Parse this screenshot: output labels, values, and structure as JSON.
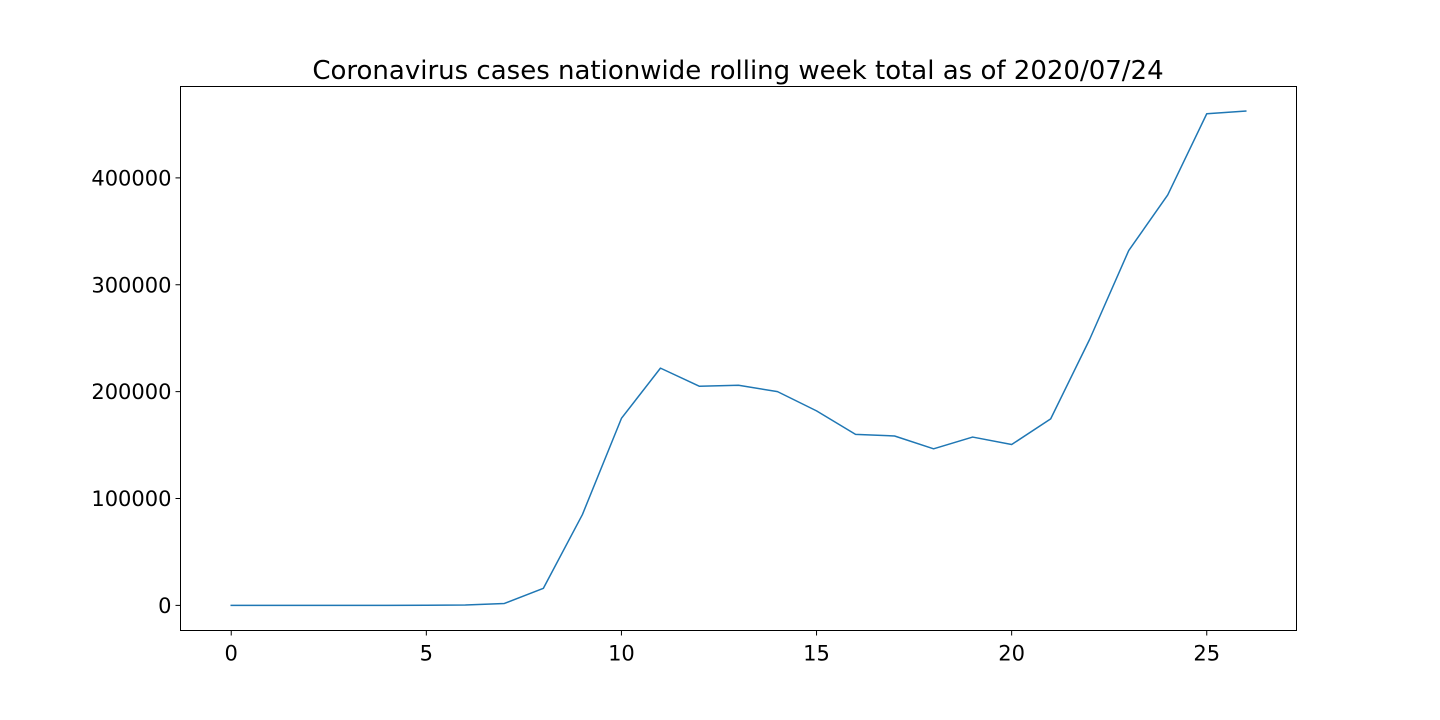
{
  "chart_data": {
    "type": "line",
    "title": "Coronavirus cases nationwide rolling week total as of 2020/07/24",
    "xlabel": "",
    "ylabel": "",
    "x": [
      0,
      1,
      2,
      3,
      4,
      5,
      6,
      7,
      8,
      9,
      10,
      11,
      12,
      13,
      14,
      15,
      16,
      17,
      18,
      19,
      20,
      21,
      22,
      23,
      24,
      25,
      26
    ],
    "series": [
      {
        "values": [
          0,
          0,
          0,
          0,
          0,
          100,
          400,
          1800,
          16000,
          85000,
          175000,
          222000,
          205000,
          206000,
          200000,
          182000,
          160000,
          158500,
          146500,
          157500,
          150500,
          174500,
          249000,
          332000,
          384000,
          460000,
          462500
        ],
        "color": "#1f77b4"
      }
    ],
    "xlim": [
      -1.3,
      27.3
    ],
    "ylim": [
      -23500,
      485500
    ],
    "xticks": [
      0,
      5,
      10,
      15,
      20,
      25
    ],
    "xtick_labels": [
      "0",
      "5",
      "10",
      "15",
      "20",
      "25"
    ],
    "yticks": [
      0,
      100000,
      200000,
      300000,
      400000
    ],
    "ytick_labels": [
      "0",
      "100000",
      "200000",
      "300000",
      "400000"
    ],
    "grid": false,
    "legend": "none"
  }
}
